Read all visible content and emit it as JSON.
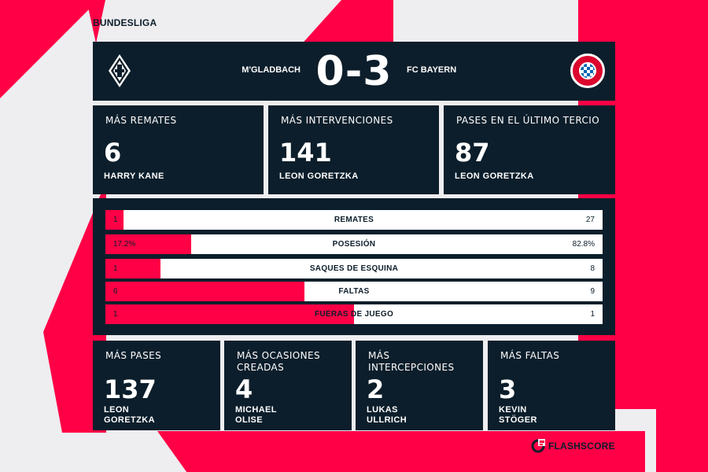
{
  "league": "BUNDESLIGA",
  "match": {
    "home_team": "M'GLADBACH",
    "away_team": "FC BAYERN",
    "score": "0-3",
    "home_crest": "borussia-diamond-crest",
    "away_crest": "fc-bayern-crest"
  },
  "top_stats": [
    {
      "label": "MÁS REMATES",
      "value": "6",
      "player": "HARRY KANE"
    },
    {
      "label": "MÁS INTERVENCIONES",
      "value": "141",
      "player": "LEON GORETZKA"
    },
    {
      "label": "PASES EN EL ÚLTIMO TERCIO",
      "value": "87",
      "player": "LEON GORETZKA"
    }
  ],
  "comparison": [
    {
      "label": "REMATES",
      "home": "1",
      "away": "27",
      "home_share": 0.036
    },
    {
      "label": "POSESIÓN",
      "home": "17.2%",
      "away": "82.8%",
      "home_share": 0.172
    },
    {
      "label": "SAQUES DE ESQUINA",
      "home": "1",
      "away": "8",
      "home_share": 0.111
    },
    {
      "label": "FALTAS",
      "home": "6",
      "away": "9",
      "home_share": 0.4
    },
    {
      "label": "FUERAS DE JUEGO",
      "home": "1",
      "away": "1",
      "home_share": 0.5
    }
  ],
  "bottom_stats": [
    {
      "label": "MÁS PASES",
      "value": "137",
      "player_line1": "LEON",
      "player_line2": "GORETZKA"
    },
    {
      "label": "MÁS OCASIONES CREADAS",
      "value": "4",
      "player_line1": "MICHAEL",
      "player_line2": "OLISE"
    },
    {
      "label": "MÁS INTERCEPCIONES",
      "value": "2",
      "player_line1": "LUKAS",
      "player_line2": "ULLRICH"
    },
    {
      "label": "MÁS FALTAS",
      "value": "3",
      "player_line1": "KEVIN",
      "player_line2": "STÖGER"
    }
  ],
  "brand": {
    "name": "FLASHSCORE",
    "icon": "flashscore-logo-icon"
  },
  "colors": {
    "accent": "#ff0046",
    "panel": "#0c1e2b",
    "background": "#eeedf0"
  }
}
